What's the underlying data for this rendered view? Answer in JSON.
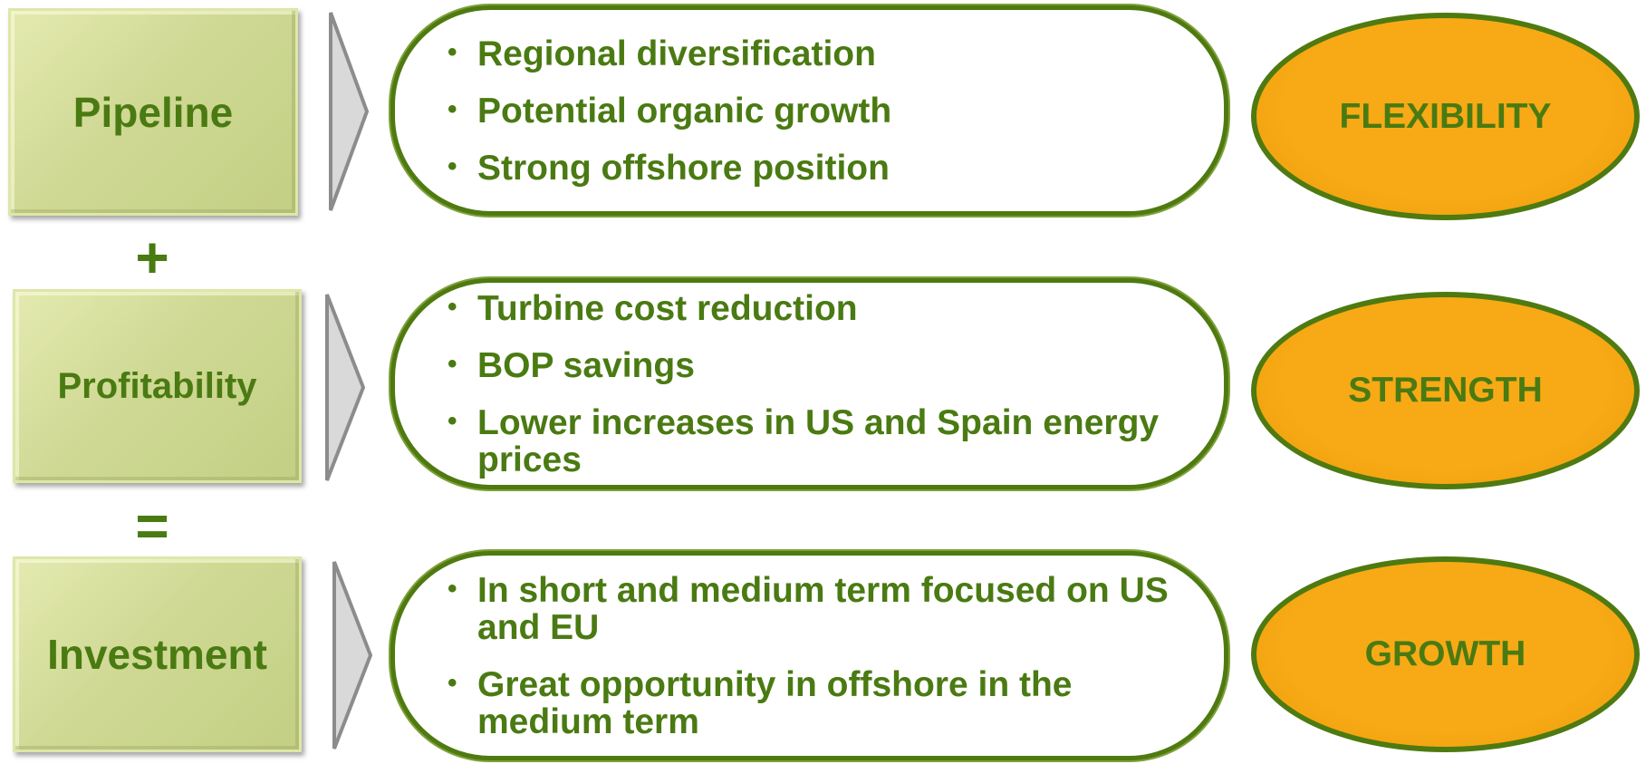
{
  "rows": [
    {
      "label": "Pipeline",
      "bullets": [
        "Regional diversification",
        "Potential organic growth",
        "Strong offshore position"
      ],
      "outcome": "FLEXIBILITY"
    },
    {
      "label": "Profitability",
      "bullets": [
        "Turbine cost reduction",
        "BOP savings",
        "Lower increases in US and Spain energy prices"
      ],
      "outcome": "STRENGTH"
    },
    {
      "label": "Investment",
      "bullets": [
        "In short and medium term focused on US and EU",
        "Great opportunity in offshore in the medium term"
      ],
      "outcome": "GROWTH"
    }
  ],
  "operators": [
    "+",
    "="
  ]
}
